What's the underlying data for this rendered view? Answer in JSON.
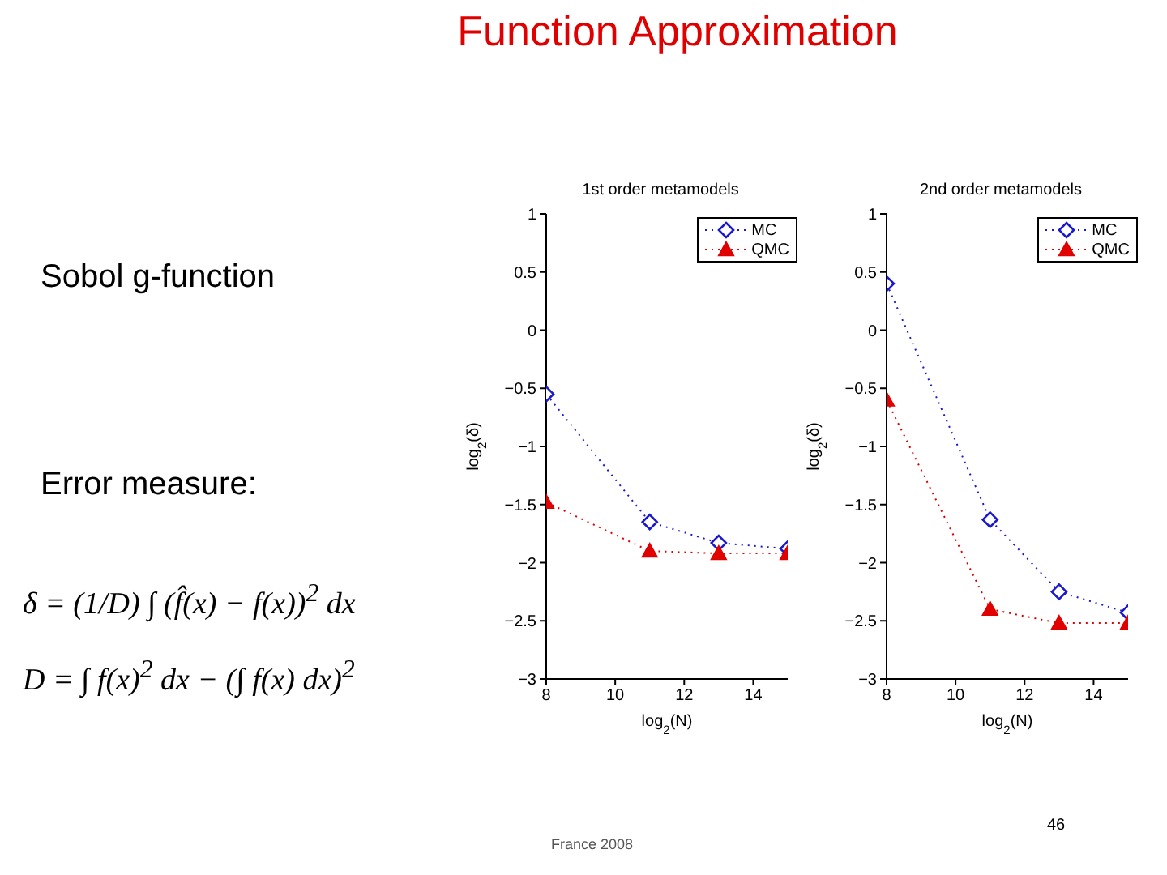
{
  "chart_data": [
    {
      "type": "other",
      "title": "Function Approximation",
      "annotations": [
        "Sobol g-function",
        "Error measure:",
        "δ = (1/D) ∫ (f̂(x) − f(x))$^{2}$ dx",
        "D = ∫ f(x)$^{2}$ dx − (∫ f(x) dx)$^{2}$",
        "France 2008",
        "46"
      ]
    },
    {
      "type": "line",
      "title": "1st order metamodels",
      "xlabel": "log$_{2}$(N)",
      "ylabel": "log$_{2}$(δ)",
      "x": [
        8,
        11,
        13,
        15
      ],
      "xlim": [
        8,
        15
      ],
      "xticks": [
        8,
        10,
        12,
        14
      ],
      "ylim": [
        -3,
        1
      ],
      "yticks": [
        -3,
        -2.5,
        -2,
        -1.5,
        -1,
        -0.5,
        0,
        0.5,
        1
      ],
      "grid": false,
      "legend": "top right",
      "line_style": "dotted",
      "series": [
        {
          "name": "MC",
          "color": "#1a1acc",
          "marker": "diamond",
          "values": [
            -0.55,
            -1.65,
            -1.83,
            -1.88
          ]
        },
        {
          "name": "QMC",
          "color": "#e00000",
          "marker": "triangle",
          "values": [
            -1.48,
            -1.9,
            -1.92,
            -1.92
          ]
        }
      ]
    },
    {
      "type": "line",
      "title": "2nd order metamodels",
      "xlabel": "log$_{2}$(N)",
      "ylabel": "log$_{2}$(δ)",
      "x": [
        8,
        11,
        13,
        15
      ],
      "xlim": [
        8,
        15
      ],
      "xticks": [
        8,
        10,
        12,
        14
      ],
      "ylim": [
        -3,
        1
      ],
      "yticks": [
        -3,
        -2.5,
        -2,
        -1.5,
        -1,
        -0.5,
        0,
        0.5,
        1
      ],
      "grid": false,
      "legend": "top right",
      "line_style": "dotted",
      "series": [
        {
          "name": "MC",
          "color": "#1a1acc",
          "marker": "diamond",
          "values": [
            0.4,
            -1.63,
            -2.25,
            -2.43
          ]
        },
        {
          "name": "QMC",
          "color": "#e00000",
          "marker": "triangle",
          "values": [
            -0.6,
            -2.4,
            -2.52,
            -2.52
          ]
        }
      ]
    }
  ]
}
